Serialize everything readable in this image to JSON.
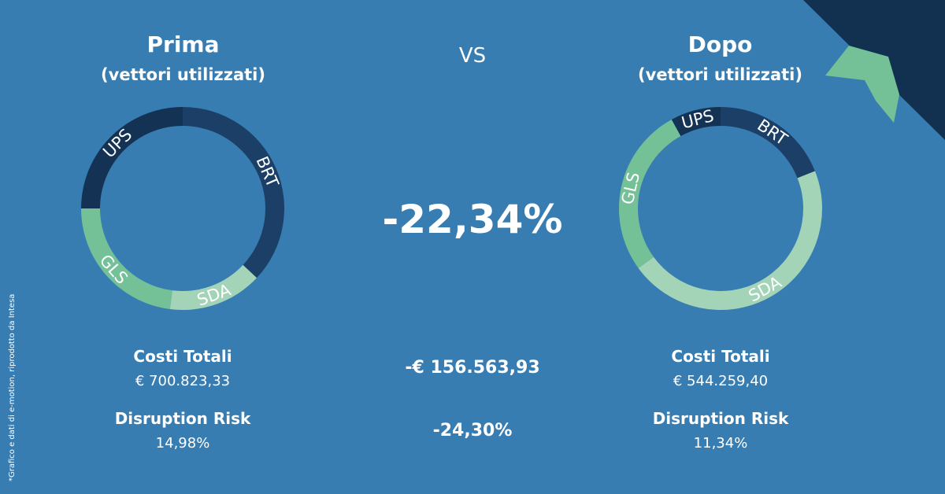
{
  "left": {
    "title": "Prima",
    "subtitle": "(vettori utilizzati)",
    "costs_label": "Costi Totali",
    "costs_value": "€ 700.823,33",
    "risk_label": "Disruption Risk",
    "risk_value": "14,98%"
  },
  "right": {
    "title": "Dopo",
    "subtitle": "(vettori utilizzati)",
    "costs_label": "Costi Totali",
    "costs_value": "€ 544.259,40",
    "risk_label": "Disruption Risk",
    "risk_value": "11,34%"
  },
  "center": {
    "vs": "VS",
    "percent_change": "-22,34%",
    "cost_difference": "-€ 156.563,93",
    "risk_difference": "-24,30%"
  },
  "footnote": "*Grafico e dati di e-motion, riprodotto da Intesa",
  "colors": {
    "background": "#377db2",
    "corner_dark": "#12304f",
    "arrow_green": "#74c198"
  },
  "chart_data": [
    {
      "type": "pie",
      "donut": true,
      "title": "Prima",
      "series": [
        {
          "label": "BRT",
          "value": 37,
          "color": "#1b3f66"
        },
        {
          "label": "SDA",
          "value": 15,
          "color": "#a4d4b7"
        },
        {
          "label": "GLS",
          "value": 23,
          "color": "#74c198"
        },
        {
          "label": "UPS",
          "value": 25,
          "color": "#143354"
        }
      ]
    },
    {
      "type": "pie",
      "donut": true,
      "title": "Dopo",
      "series": [
        {
          "label": "BRT",
          "value": 19,
          "color": "#1b3f66"
        },
        {
          "label": "SDA",
          "value": 46,
          "color": "#a4d4b7"
        },
        {
          "label": "GLS",
          "value": 27,
          "color": "#74c198"
        },
        {
          "label": "UPS",
          "value": 8,
          "color": "#143354"
        }
      ]
    }
  ]
}
